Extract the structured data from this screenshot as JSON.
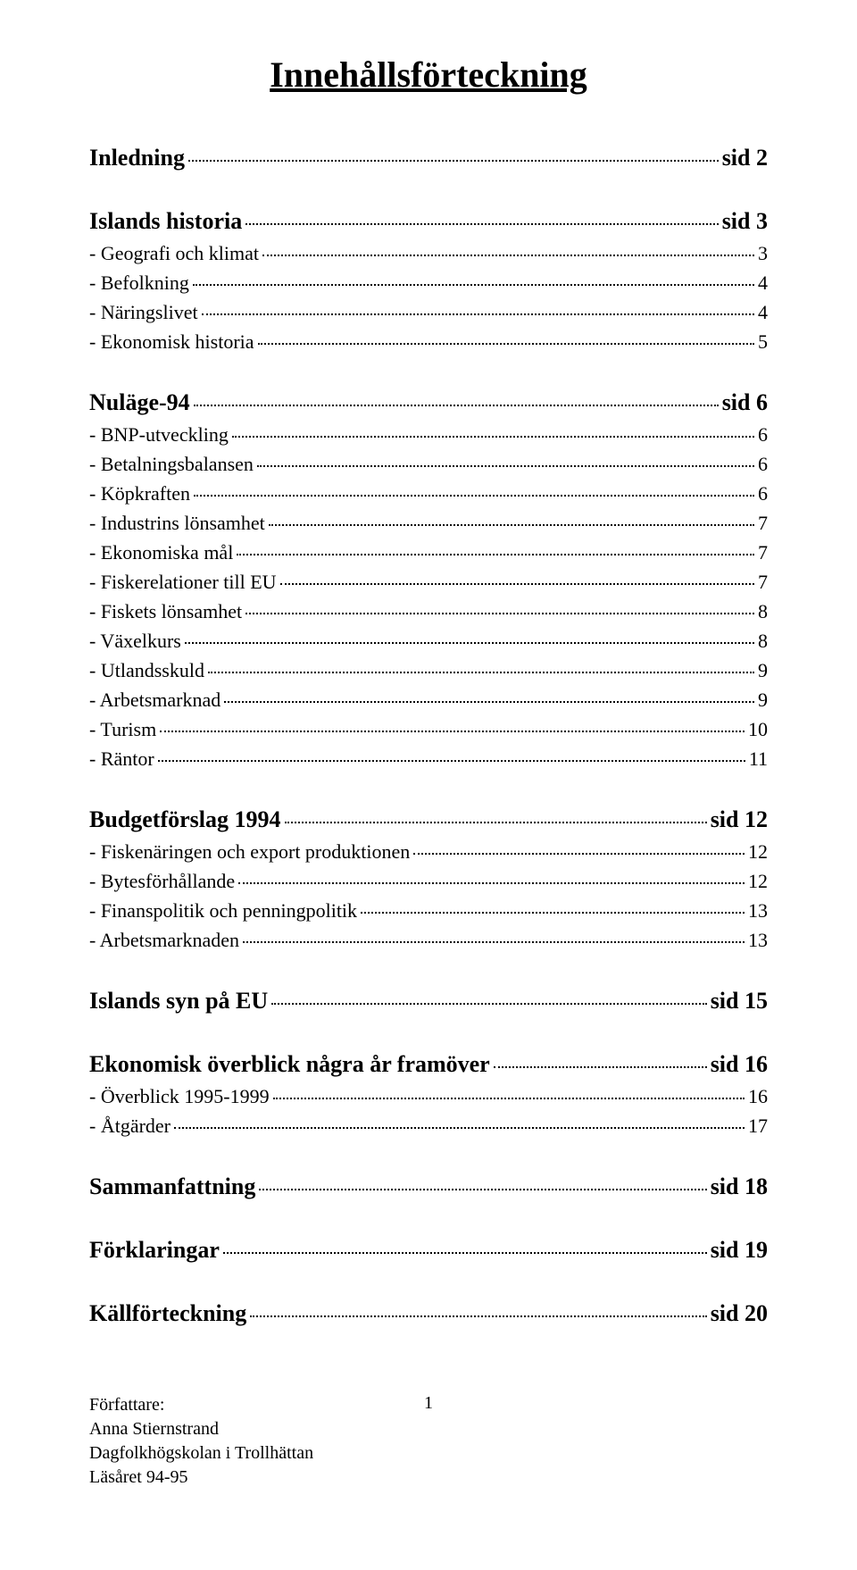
{
  "title": "Innehållsförteckning",
  "sections": [
    {
      "heading": {
        "label": "Inledning",
        "page": "sid 2"
      },
      "items": []
    },
    {
      "heading": {
        "label": "Islands historia",
        "page": "sid 3"
      },
      "items": [
        {
          "label": "- Geografi och klimat",
          "page": "3"
        },
        {
          "label": "- Befolkning",
          "page": "4"
        },
        {
          "label": "- Näringslivet",
          "page": "4"
        },
        {
          "label": "- Ekonomisk historia",
          "page": "5"
        }
      ]
    },
    {
      "heading": {
        "label": "Nuläge-94",
        "page": "sid 6"
      },
      "items": [
        {
          "label": "- BNP-utveckling",
          "page": "6"
        },
        {
          "label": "- Betalningsbalansen",
          "page": "6"
        },
        {
          "label": "- Köpkraften",
          "page": "6"
        },
        {
          "label": "- Industrins lönsamhet",
          "page": "7"
        },
        {
          "label": "- Ekonomiska mål",
          "page": "7"
        },
        {
          "label": "- Fiskerelationer till EU",
          "page": "7"
        },
        {
          "label": "- Fiskets lönsamhet",
          "page": "8"
        },
        {
          "label": "- Växelkurs",
          "page": "8"
        },
        {
          "label": "- Utlandsskuld",
          "page": "9"
        },
        {
          "label": "- Arbetsmarknad",
          "page": "9"
        },
        {
          "label": "- Turism",
          "page": "10"
        },
        {
          "label": "- Räntor",
          "page": "11"
        }
      ]
    },
    {
      "heading": {
        "label": "Budgetförslag 1994",
        "page": "sid 12"
      },
      "items": [
        {
          "label": "- Fiskenäringen och export produktionen",
          "page": "12"
        },
        {
          "label": "- Bytesförhållande",
          "page": "12"
        },
        {
          "label": "- Finanspolitik och penningpolitik",
          "page": "13"
        },
        {
          "label": "- Arbetsmarknaden",
          "page": "13"
        }
      ]
    },
    {
      "heading": {
        "label": "Islands syn på EU",
        "page": "sid 15"
      },
      "items": []
    },
    {
      "heading": {
        "label": "Ekonomisk överblick några år framöver",
        "page": "sid 16"
      },
      "items": [
        {
          "label": "- Överblick 1995-1999",
          "page": "16"
        },
        {
          "label": "- Åtgärder",
          "page": "17"
        }
      ]
    },
    {
      "heading": {
        "label": "Sammanfattning",
        "page": "sid 18"
      },
      "items": []
    },
    {
      "heading": {
        "label": "Förklaringar",
        "page": "sid 19"
      },
      "items": []
    },
    {
      "heading": {
        "label": "Källförteckning",
        "page": "sid 20"
      },
      "items": []
    }
  ],
  "footer": {
    "line1": "Författare:",
    "line2": "Anna Stiernstrand",
    "line3": "Dagfolkhögskolan i Trollhättan",
    "line4": "Läsåret 94-95",
    "pageNumber": "1"
  },
  "style": {
    "background_color": "#ffffff",
    "text_color": "#000000",
    "title_fontsize": 40,
    "heading_fontsize": 26,
    "item_fontsize": 22,
    "footer_fontsize": 20,
    "font_family": "Times New Roman"
  }
}
